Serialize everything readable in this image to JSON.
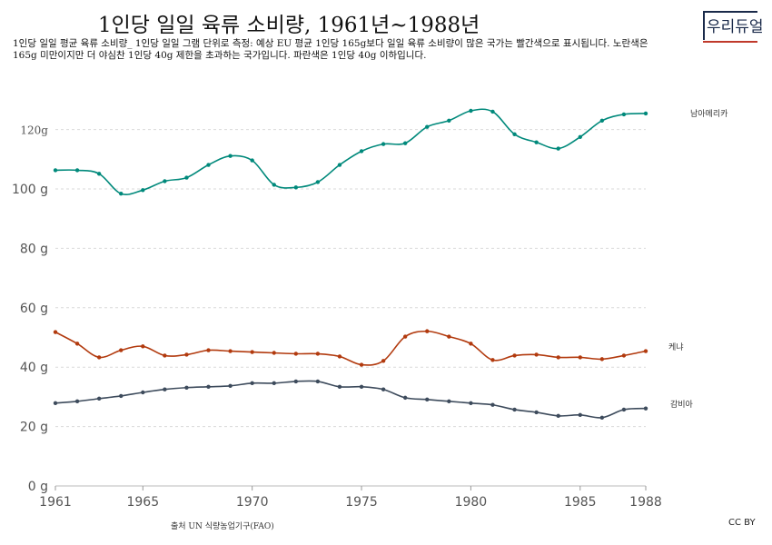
{
  "header": {
    "title": "1인당 일일 육류 소비량, 1961년~1988년",
    "subtitle": "1인당 일일 평균 육류 소비량_ 1인당 일일 그램 단위로 측정: 예상 EU 평균 1인당 165g보다 일일 육류 소비량이 많은 국가는 빨간색으로 표시됩니다. 노란색은 165g 미만이지만 더 야심찬 1인당 40g 제한을 초과하는 국가입니다. 파란색은 1인당 40g 이하입니다."
  },
  "logo": {
    "text": "우리듀얼"
  },
  "footer": {
    "source": "출처 UN 식량농업기구(FAO)",
    "license": "CC BY"
  },
  "colors": {
    "south_america": "#00897b",
    "kenya": "#b23a0e",
    "gambia": "#3d4b5c",
    "grid": "#d9d9d9"
  },
  "chart_data": {
    "type": "line",
    "title": "1인당 일일 육류 소비량, 1961년~1988년",
    "x": [
      1961,
      1962,
      1963,
      1964,
      1965,
      1966,
      1967,
      1968,
      1969,
      1970,
      1971,
      1972,
      1973,
      1974,
      1975,
      1976,
      1977,
      1978,
      1979,
      1980,
      1981,
      1982,
      1983,
      1984,
      1985,
      1986,
      1987,
      1988
    ],
    "xlim": [
      1961,
      1988
    ],
    "ylim": [
      0,
      130
    ],
    "x_ticks": [
      1961,
      1965,
      1970,
      1975,
      1980,
      1985,
      1988
    ],
    "x_tick_labels": [
      "1961",
      "1965",
      "1970",
      "1975",
      "1980",
      "1985",
      "1988"
    ],
    "y_ticks": [
      0,
      20,
      40,
      60,
      80,
      100,
      120
    ],
    "y_tick_labels": [
      "0 g",
      "20 g",
      "40 g",
      "60 g",
      "80 g",
      "100 g",
      "120g"
    ],
    "grid": true,
    "series": [
      {
        "name": "남아메리카",
        "color_key": "south_america",
        "values": [
          106.3,
          106.3,
          105.1,
          98.4,
          99.6,
          102.6,
          103.8,
          108.1,
          111.1,
          109.6,
          101.4,
          100.5,
          102.3,
          108.1,
          112.7,
          115.1,
          115.4,
          120.9,
          123.0,
          126.3,
          126.0,
          118.4,
          115.7,
          113.6,
          117.5,
          123.0,
          125.1,
          125.4
        ]
      },
      {
        "name": "케냐",
        "color_key": "kenya",
        "values": [
          51.8,
          47.9,
          43.3,
          45.7,
          47.0,
          43.9,
          44.2,
          45.7,
          45.4,
          45.1,
          44.8,
          44.5,
          44.5,
          43.6,
          40.8,
          42.1,
          50.3,
          52.1,
          50.3,
          47.9,
          42.4,
          43.9,
          44.2,
          43.3,
          43.3,
          42.7,
          43.9,
          45.4
        ]
      },
      {
        "name": "감비아",
        "color_key": "gambia",
        "values": [
          27.9,
          28.5,
          29.4,
          30.3,
          31.5,
          32.5,
          33.1,
          33.4,
          33.7,
          34.6,
          34.6,
          35.2,
          35.2,
          33.4,
          33.4,
          32.5,
          29.7,
          29.1,
          28.5,
          27.9,
          27.3,
          25.7,
          24.8,
          23.6,
          23.9,
          23.0,
          25.7,
          26.1
        ]
      }
    ]
  }
}
